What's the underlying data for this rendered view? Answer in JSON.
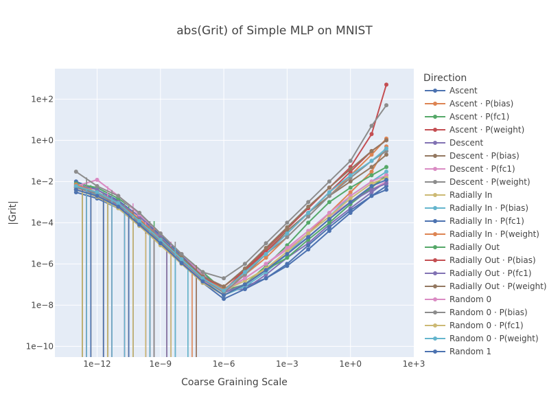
{
  "chart_data": {
    "type": "line",
    "title": "abs(Grit) of Simple MLP on MNIST",
    "xlabel": "Coarse Graining Scale",
    "ylabel": "|Grit|",
    "x_scale": "log",
    "y_scale": "log",
    "xlim": [
      1e-14,
      1000
    ],
    "ylim": [
      3e-11,
      3000
    ],
    "x_ticks": [
      {
        "value": 1e-12,
        "label": "1e−12"
      },
      {
        "value": 1e-09,
        "label": "1e−9"
      },
      {
        "value": 1e-06,
        "label": "1e−6"
      },
      {
        "value": 0.001,
        "label": "1e−3"
      },
      {
        "value": 1,
        "label": "1e+0"
      },
      {
        "value": 1000,
        "label": "1e+3"
      }
    ],
    "y_ticks": [
      {
        "value": 1e-10,
        "label": "1e−10"
      },
      {
        "value": 1e-08,
        "label": "1e−8"
      },
      {
        "value": 1e-06,
        "label": "1e−6"
      },
      {
        "value": 0.0001,
        "label": "1e−4"
      },
      {
        "value": 0.01,
        "label": "1e−2"
      },
      {
        "value": 1,
        "label": "1e+0"
      },
      {
        "value": 100,
        "label": "1e+2"
      }
    ],
    "grid": true,
    "legend_title": "Direction",
    "legend_position": "right",
    "colors": {
      "plot_background": "#e5ecf6",
      "grid": "#ffffff"
    },
    "series": [
      {
        "name": "Ascent",
        "color": "#4c72b0",
        "x": [
          1e-13,
          1e-12,
          1e-11,
          1e-10,
          1e-09,
          1e-08,
          1e-07,
          1e-06,
          1e-05,
          0.0001,
          0.001,
          0.01,
          0.1,
          1,
          10,
          50
        ],
        "y": [
          0.01,
          0.004,
          0.0012,
          0.0002,
          2.5e-05,
          2.5e-06,
          3e-07,
          6e-08,
          8e-08,
          2e-07,
          8e-07,
          5e-06,
          4e-05,
          0.0003,
          0.002,
          0.006
        ]
      },
      {
        "name": "Ascent · P(bias)",
        "color": "#dd8452",
        "x": [
          1e-13,
          1e-12,
          1e-11,
          1e-10,
          1e-09,
          1e-08,
          1e-07,
          1e-06,
          1e-05,
          0.0001,
          0.001,
          0.01,
          0.1,
          1,
          10,
          50
        ],
        "y": [
          0.006,
          0.003,
          0.001,
          0.00015,
          2e-05,
          2e-06,
          2e-07,
          4e-08,
          1e-07,
          5e-07,
          3e-06,
          3e-05,
          0.0003,
          0.003,
          0.03,
          0.5
        ]
      },
      {
        "name": "Ascent · P(fc1)",
        "color": "#55a868",
        "x": [
          1e-13,
          1e-12,
          1e-11,
          1e-10,
          1e-09,
          1e-08,
          1e-07,
          1e-06,
          1e-05,
          0.0001,
          0.001,
          0.01,
          0.1,
          1,
          10,
          50
        ],
        "y": [
          0.008,
          0.005,
          0.0015,
          0.0003,
          3e-05,
          3e-06,
          4e-07,
          5e-08,
          1e-07,
          8e-07,
          8e-06,
          0.0001,
          0.001,
          0.005,
          0.02,
          0.05
        ]
      },
      {
        "name": "Ascent · P(weight)",
        "color": "#c44e52",
        "x": [
          1e-13,
          1e-12,
          1e-11,
          1e-10,
          1e-09,
          1e-08,
          1e-07,
          1e-06,
          1e-05,
          0.0001,
          0.001,
          0.01,
          0.1,
          1,
          10,
          50
        ],
        "y": [
          0.005,
          0.003,
          0.0008,
          0.0001,
          1.5e-05,
          1.5e-06,
          2e-07,
          5e-08,
          5e-07,
          5e-06,
          5e-05,
          0.0005,
          0.005,
          0.05,
          2,
          500
        ]
      },
      {
        "name": "Descent",
        "color": "#8172b3",
        "x": [
          1e-13,
          1e-12,
          1e-11,
          1e-10,
          1e-09,
          1e-08,
          1e-07,
          1e-06,
          1e-05,
          0.0001,
          0.001,
          0.01,
          0.1,
          1,
          10,
          50
        ],
        "y": [
          0.007,
          0.004,
          0.001,
          0.0002,
          2e-05,
          2e-06,
          3e-07,
          5e-08,
          6e-08,
          3e-07,
          2e-06,
          1e-05,
          8e-05,
          0.0005,
          0.003,
          0.01
        ]
      },
      {
        "name": "Descent · P(bias)",
        "color": "#937860",
        "x": [
          1e-13,
          1e-12,
          1e-11,
          1e-10,
          1e-09,
          1e-08,
          1e-07,
          1e-06,
          1e-05,
          0.0001,
          0.001,
          0.01,
          0.1,
          1,
          10,
          50
        ],
        "y": [
          0.005,
          0.003,
          0.0009,
          0.00012,
          1.5e-05,
          2e-06,
          2.5e-07,
          5e-08,
          4e-07,
          4e-06,
          4e-05,
          0.0003,
          0.002,
          0.01,
          0.05,
          0.2
        ]
      },
      {
        "name": "Descent · P(fc1)",
        "color": "#da8bc3",
        "x": [
          1e-13,
          1e-12,
          1e-11,
          1e-10,
          1e-09,
          1e-08,
          1e-07,
          1e-06,
          1e-05,
          0.0001,
          0.001,
          0.01,
          0.1,
          1,
          10,
          50
        ],
        "y": [
          0.006,
          0.012,
          0.002,
          0.00025,
          3e-05,
          3e-06,
          3e-07,
          4e-08,
          2e-07,
          1e-06,
          5e-06,
          3e-05,
          0.0002,
          0.001,
          0.004,
          0.01
        ]
      },
      {
        "name": "Descent · P(weight)",
        "color": "#8c8c8c",
        "x": [
          1e-13,
          1e-12,
          1e-11,
          1e-10,
          1e-09,
          1e-08,
          1e-07,
          1e-06,
          1e-05,
          0.0001,
          0.001,
          0.01,
          0.1,
          1,
          10,
          50
        ],
        "y": [
          0.03,
          0.006,
          0.002,
          0.0003,
          3e-05,
          3e-06,
          4e-07,
          2e-07,
          1e-06,
          1e-05,
          0.0001,
          0.001,
          0.01,
          0.1,
          5,
          50
        ]
      },
      {
        "name": "Radially In",
        "color": "#ccb974",
        "x": [
          1e-13,
          1e-12,
          1e-11,
          1e-10,
          1e-09,
          1e-08,
          1e-07,
          1e-06,
          1e-05,
          0.0001,
          0.001,
          0.01,
          0.1,
          1,
          10,
          50
        ],
        "y": [
          0.004,
          0.002,
          0.0007,
          0.0001,
          1.2e-05,
          1.5e-06,
          2e-07,
          5e-08,
          1.5e-07,
          6e-07,
          3e-06,
          2e-05,
          0.00015,
          0.001,
          0.006,
          0.02
        ]
      },
      {
        "name": "Radially In · P(bias)",
        "color": "#64b5cd",
        "x": [
          1e-13,
          1e-12,
          1e-11,
          1e-10,
          1e-09,
          1e-08,
          1e-07,
          1e-06,
          1e-05,
          0.0001,
          0.001,
          0.01,
          0.1,
          1,
          10,
          50
        ],
        "y": [
          0.006,
          0.002,
          0.0006,
          8e-05,
          1e-05,
          1.2e-06,
          1.5e-07,
          3e-08,
          8e-08,
          4e-07,
          3e-06,
          3e-05,
          0.0002,
          0.002,
          0.01,
          0.03
        ]
      },
      {
        "name": "Radially In · P(fc1)",
        "color": "#4c72b0",
        "x": [
          1e-13,
          1e-12,
          1e-11,
          1e-10,
          1e-09,
          1e-08,
          1e-07,
          1e-06,
          1e-05,
          0.0001,
          0.001,
          0.01,
          0.1,
          1,
          10,
          50
        ],
        "y": [
          0.003,
          0.0015,
          0.0005,
          7e-05,
          9e-06,
          1e-06,
          1.2e-07,
          2e-08,
          6e-08,
          2e-07,
          1e-06,
          8e-06,
          6e-05,
          0.0004,
          0.002,
          0.004
        ]
      },
      {
        "name": "Radially In · P(weight)",
        "color": "#dd8452",
        "x": [
          1e-13,
          1e-12,
          1e-11,
          1e-10,
          1e-09,
          1e-08,
          1e-07,
          1e-06,
          1e-05,
          0.0001,
          0.001,
          0.01,
          0.1,
          1,
          10,
          50
        ],
        "y": [
          0.007,
          0.003,
          0.0009,
          0.00012,
          1.5e-05,
          1.8e-06,
          2e-07,
          6e-08,
          3e-07,
          2e-06,
          2e-05,
          0.0002,
          0.002,
          0.02,
          0.2,
          1.2
        ]
      },
      {
        "name": "Radially Out",
        "color": "#55a868",
        "x": [
          1e-13,
          1e-12,
          1e-11,
          1e-10,
          1e-09,
          1e-08,
          1e-07,
          1e-06,
          1e-05,
          0.0001,
          0.001,
          0.01,
          0.1,
          1,
          10,
          50
        ],
        "y": [
          0.004,
          0.002,
          0.0006,
          9e-05,
          1e-05,
          1.2e-06,
          1.5e-07,
          3e-08,
          1e-07,
          5e-07,
          2e-06,
          1.5e-05,
          0.0001,
          0.0008,
          0.005,
          0.02
        ]
      },
      {
        "name": "Radially Out · P(bias)",
        "color": "#c44e52",
        "x": [
          1e-13,
          1e-12,
          1e-11,
          1e-10,
          1e-09,
          1e-08,
          1e-07,
          1e-06,
          1e-05,
          0.0001,
          0.001,
          0.01,
          0.1,
          1,
          10,
          50
        ],
        "y": [
          0.005,
          0.0025,
          0.0008,
          0.0001,
          1.3e-05,
          1.5e-06,
          2e-07,
          8e-08,
          5e-07,
          4e-06,
          3e-05,
          0.0003,
          0.003,
          0.03,
          0.3,
          1
        ]
      },
      {
        "name": "Radially Out · P(fc1)",
        "color": "#8172b3",
        "x": [
          1e-13,
          1e-12,
          1e-11,
          1e-10,
          1e-09,
          1e-08,
          1e-07,
          1e-06,
          1e-05,
          0.0001,
          0.001,
          0.01,
          0.1,
          1,
          10,
          50
        ],
        "y": [
          0.005,
          0.0025,
          0.0007,
          0.0001,
          1.2e-05,
          1.4e-06,
          1.8e-07,
          4e-08,
          1e-07,
          5e-07,
          3e-06,
          2e-05,
          0.00015,
          0.001,
          0.004,
          0.008
        ]
      },
      {
        "name": "Radially Out · P(weight)",
        "color": "#937860",
        "x": [
          1e-13,
          1e-12,
          1e-11,
          1e-10,
          1e-09,
          1e-08,
          1e-07,
          1e-06,
          1e-05,
          0.0001,
          0.001,
          0.01,
          0.1,
          1,
          10,
          50
        ],
        "y": [
          0.006,
          0.003,
          0.0009,
          0.00013,
          1.6e-05,
          2e-06,
          2.5e-07,
          8e-08,
          6e-07,
          6e-06,
          6e-05,
          0.0006,
          0.005,
          0.04,
          0.3,
          1
        ]
      },
      {
        "name": "Random 0",
        "color": "#da8bc3",
        "x": [
          1e-13,
          1e-12,
          1e-11,
          1e-10,
          1e-09,
          1e-08,
          1e-07,
          1e-06,
          1e-05,
          0.0001,
          0.001,
          0.01,
          0.1,
          1,
          10,
          50
        ],
        "y": [
          0.004,
          0.002,
          0.0006,
          8e-05,
          1e-05,
          1.2e-06,
          1.5e-07,
          5e-08,
          2e-07,
          1e-06,
          6e-06,
          4e-05,
          0.0003,
          0.002,
          0.01,
          0.02
        ]
      },
      {
        "name": "Random 0 · P(bias)",
        "color": "#8c8c8c",
        "x": [
          1e-13,
          1e-12,
          1e-11,
          1e-10,
          1e-09,
          1e-08,
          1e-07,
          1e-06,
          1e-05,
          0.0001,
          0.001,
          0.01,
          0.1,
          1,
          10,
          50
        ],
        "y": [
          0.005,
          0.0025,
          0.0008,
          0.0001,
          1.2e-05,
          1.4e-06,
          1.8e-07,
          4e-08,
          3e-07,
          3e-06,
          2e-05,
          0.0002,
          0.002,
          0.015,
          0.1,
          0.3
        ]
      },
      {
        "name": "Random 0 · P(fc1)",
        "color": "#ccb974",
        "x": [
          1e-13,
          1e-12,
          1e-11,
          1e-10,
          1e-09,
          1e-08,
          1e-07,
          1e-06,
          1e-05,
          0.0001,
          0.001,
          0.01,
          0.1,
          1,
          10,
          50
        ],
        "y": [
          0.004,
          0.0018,
          0.0005,
          7e-05,
          8e-06,
          1e-06,
          1.2e-07,
          3e-08,
          1e-07,
          6e-07,
          4e-06,
          3e-05,
          0.0002,
          0.0015,
          0.008,
          0.015
        ]
      },
      {
        "name": "Random 0 · P(weight)",
        "color": "#64b5cd",
        "x": [
          1e-13,
          1e-12,
          1e-11,
          1e-10,
          1e-09,
          1e-08,
          1e-07,
          1e-06,
          1e-05,
          0.0001,
          0.001,
          0.01,
          0.1,
          1,
          10,
          50
        ],
        "y": [
          0.006,
          0.003,
          0.0009,
          0.00012,
          1.5e-05,
          1.7e-06,
          2e-07,
          5e-08,
          4e-07,
          3e-06,
          3e-05,
          0.0003,
          0.003,
          0.02,
          0.1,
          0.4
        ]
      },
      {
        "name": "Random 1",
        "color": "#4c72b0",
        "x": [
          1e-13,
          1e-12,
          1e-11,
          1e-10,
          1e-09,
          1e-08,
          1e-07,
          1e-06,
          1e-05,
          0.0001,
          0.001,
          0.01,
          0.1,
          1,
          10,
          50
        ],
        "y": [
          0.004,
          0.002,
          0.0006,
          8e-05,
          1e-05,
          1.1e-06,
          1.4e-07,
          3e-08,
          1e-07,
          5e-07,
          3e-06,
          2e-05,
          0.00015,
          0.001,
          0.006,
          0.012
        ]
      }
    ]
  }
}
